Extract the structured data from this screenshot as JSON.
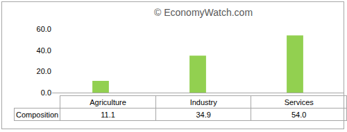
{
  "chart_data": {
    "type": "bar",
    "annotations": [
      "© EconomyWatch.com"
    ],
    "categories": [
      "Agriculture",
      "Industry",
      "Services"
    ],
    "series": [
      {
        "name": "Composition",
        "color": "#92d050",
        "values": [
          11.1,
          34.9,
          54.0
        ],
        "value_labels": [
          "11.1",
          "34.9",
          "54.0"
        ]
      }
    ],
    "ylim": [
      0,
      60
    ],
    "yticks": [
      {
        "value": 0,
        "label": "0.0"
      },
      {
        "value": 20,
        "label": "20.0"
      },
      {
        "value": 40,
        "label": "40.0"
      },
      {
        "value": 60,
        "label": "60.0"
      }
    ],
    "grid": false,
    "tick_labels": "y"
  }
}
